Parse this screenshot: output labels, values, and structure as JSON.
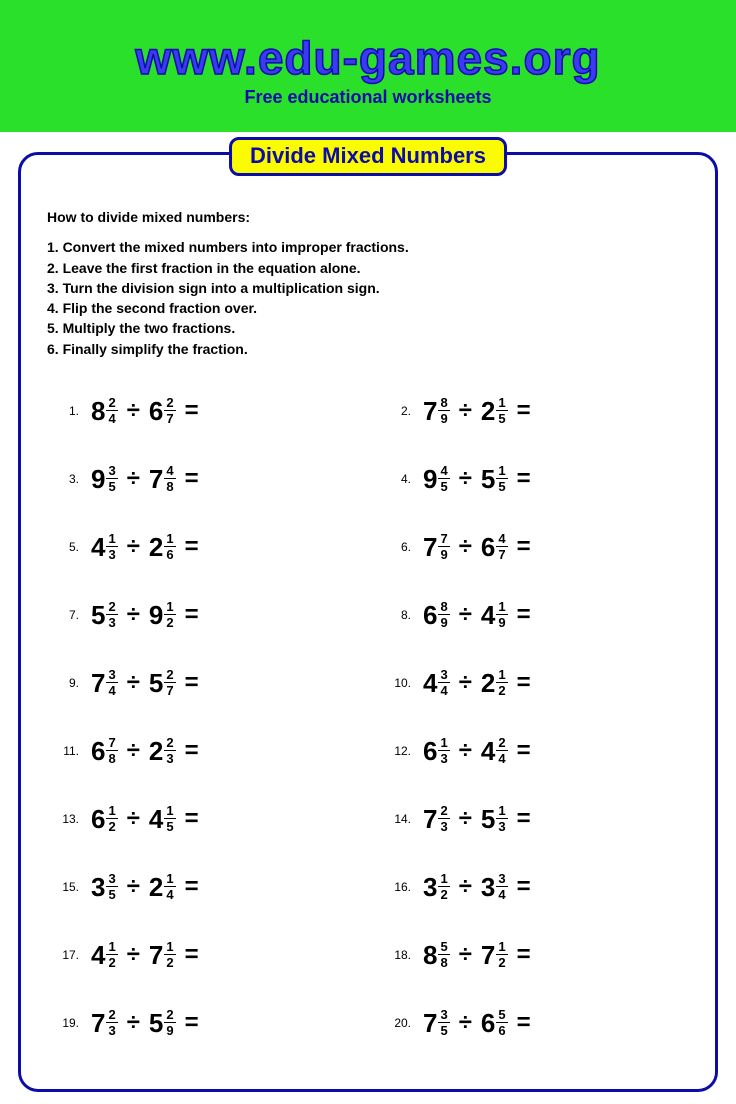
{
  "header": {
    "bg_color": "#2be02b",
    "site_url": "www.edu-games.org",
    "url_color": "#3a3af0",
    "subtitle": "Free educational worksheets",
    "subtitle_color": "#0c0ca8"
  },
  "sheet": {
    "border_color": "#0c0ca8",
    "title": "Divide Mixed Numbers",
    "title_bg": "#fcfc00",
    "title_color": "#0c0ca8"
  },
  "instructions": {
    "heading": "How to divide mixed numbers:",
    "steps": [
      "1. Convert the mixed numbers into improper fractions.",
      "2. Leave the first fraction in the equation alone.",
      "3. Turn the division sign into a multiplication sign.",
      "4. Flip the second fraction over.",
      "5. Multiply the two fractions.",
      "6. Finally simplify the fraction."
    ]
  },
  "operator": "÷",
  "equals": "=",
  "problems": [
    {
      "n": "1.",
      "a_w": "8",
      "a_n": "2",
      "a_d": "4",
      "b_w": "6",
      "b_n": "2",
      "b_d": "7"
    },
    {
      "n": "2.",
      "a_w": "7",
      "a_n": "8",
      "a_d": "9",
      "b_w": "2",
      "b_n": "1",
      "b_d": "5"
    },
    {
      "n": "3.",
      "a_w": "9",
      "a_n": "3",
      "a_d": "5",
      "b_w": "7",
      "b_n": "4",
      "b_d": "8"
    },
    {
      "n": "4.",
      "a_w": "9",
      "a_n": "4",
      "a_d": "5",
      "b_w": "5",
      "b_n": "1",
      "b_d": "5"
    },
    {
      "n": "5.",
      "a_w": "4",
      "a_n": "1",
      "a_d": "3",
      "b_w": "2",
      "b_n": "1",
      "b_d": "6"
    },
    {
      "n": "6.",
      "a_w": "7",
      "a_n": "7",
      "a_d": "9",
      "b_w": "6",
      "b_n": "4",
      "b_d": "7"
    },
    {
      "n": "7.",
      "a_w": "5",
      "a_n": "2",
      "a_d": "3",
      "b_w": "9",
      "b_n": "1",
      "b_d": "2"
    },
    {
      "n": "8.",
      "a_w": "6",
      "a_n": "8",
      "a_d": "9",
      "b_w": "4",
      "b_n": "1",
      "b_d": "9"
    },
    {
      "n": "9.",
      "a_w": "7",
      "a_n": "3",
      "a_d": "4",
      "b_w": "5",
      "b_n": "2",
      "b_d": "7"
    },
    {
      "n": "10.",
      "a_w": "4",
      "a_n": "3",
      "a_d": "4",
      "b_w": "2",
      "b_n": "1",
      "b_d": "2"
    },
    {
      "n": "11.",
      "a_w": "6",
      "a_n": "7",
      "a_d": "8",
      "b_w": "2",
      "b_n": "2",
      "b_d": "3"
    },
    {
      "n": "12.",
      "a_w": "6",
      "a_n": "1",
      "a_d": "3",
      "b_w": "4",
      "b_n": "2",
      "b_d": "4"
    },
    {
      "n": "13.",
      "a_w": "6",
      "a_n": "1",
      "a_d": "2",
      "b_w": "4",
      "b_n": "1",
      "b_d": "5"
    },
    {
      "n": "14.",
      "a_w": "7",
      "a_n": "2",
      "a_d": "3",
      "b_w": "5",
      "b_n": "1",
      "b_d": "3"
    },
    {
      "n": "15.",
      "a_w": "3",
      "a_n": "3",
      "a_d": "5",
      "b_w": "2",
      "b_n": "1",
      "b_d": "4"
    },
    {
      "n": "16.",
      "a_w": "3",
      "a_n": "1",
      "a_d": "2",
      "b_w": "3",
      "b_n": "3",
      "b_d": "4"
    },
    {
      "n": "17.",
      "a_w": "4",
      "a_n": "1",
      "a_d": "2",
      "b_w": "7",
      "b_n": "1",
      "b_d": "2"
    },
    {
      "n": "18.",
      "a_w": "8",
      "a_n": "5",
      "a_d": "8",
      "b_w": "7",
      "b_n": "1",
      "b_d": "2"
    },
    {
      "n": "19.",
      "a_w": "7",
      "a_n": "2",
      "a_d": "3",
      "b_w": "5",
      "b_n": "2",
      "b_d": "9"
    },
    {
      "n": "20.",
      "a_w": "7",
      "a_n": "3",
      "a_d": "5",
      "b_w": "6",
      "b_n": "5",
      "b_d": "6"
    }
  ]
}
